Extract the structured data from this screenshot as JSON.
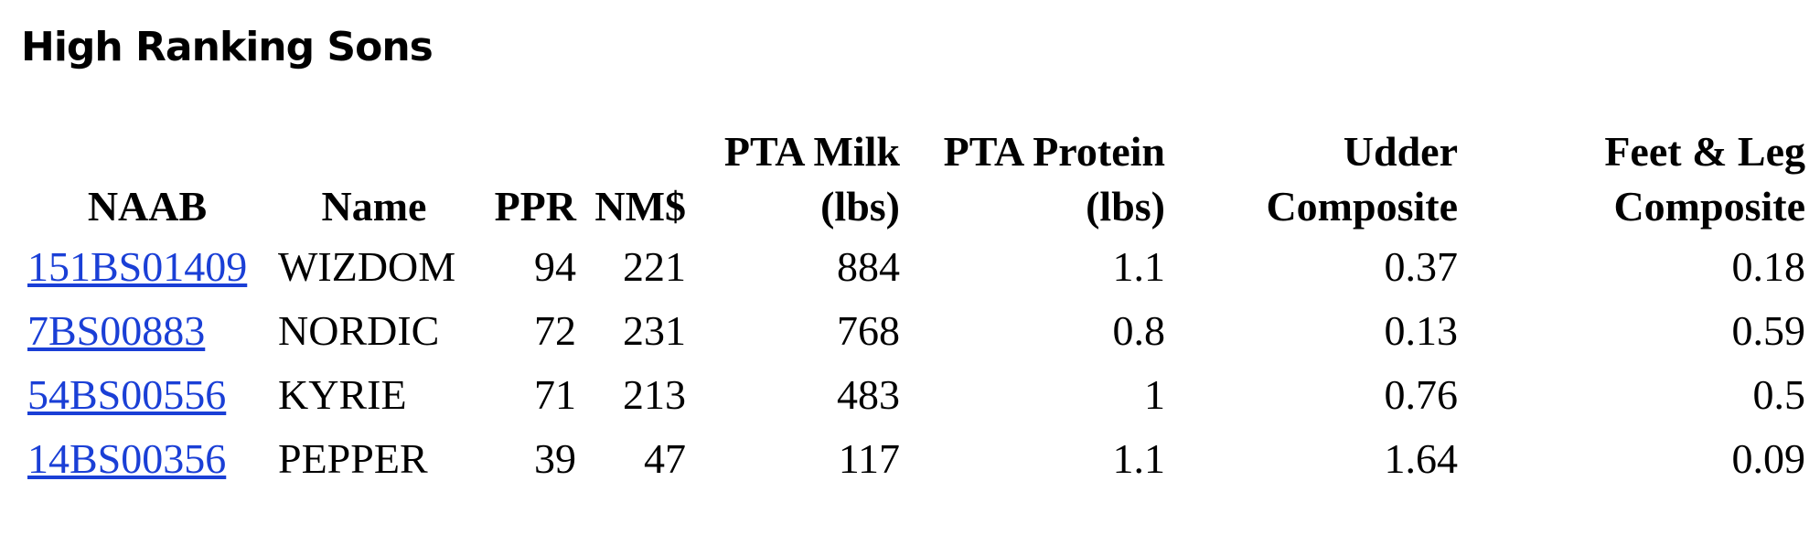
{
  "header": {
    "title": "High Ranking Sons"
  },
  "table": {
    "columns": [
      "NAAB",
      "Name",
      "PPR",
      "NM$",
      "PTA Milk (lbs)",
      "PTA Protein (lbs)",
      "Udder Composite",
      "Feet & Leg Composite"
    ],
    "rows": [
      [
        "151BS01409",
        "WIZDOM",
        94,
        221,
        884,
        1.1,
        0.37,
        0.18
      ],
      [
        "7BS00883",
        "NORDIC",
        72,
        231,
        768,
        0.8,
        0.13,
        0.59
      ],
      [
        "54BS00556",
        "KYRIE",
        71,
        213,
        483,
        1,
        0.76,
        0.5
      ],
      [
        "14BS00356",
        "PEPPER",
        39,
        47,
        117,
        1.1,
        1.64,
        0.09
      ]
    ]
  }
}
